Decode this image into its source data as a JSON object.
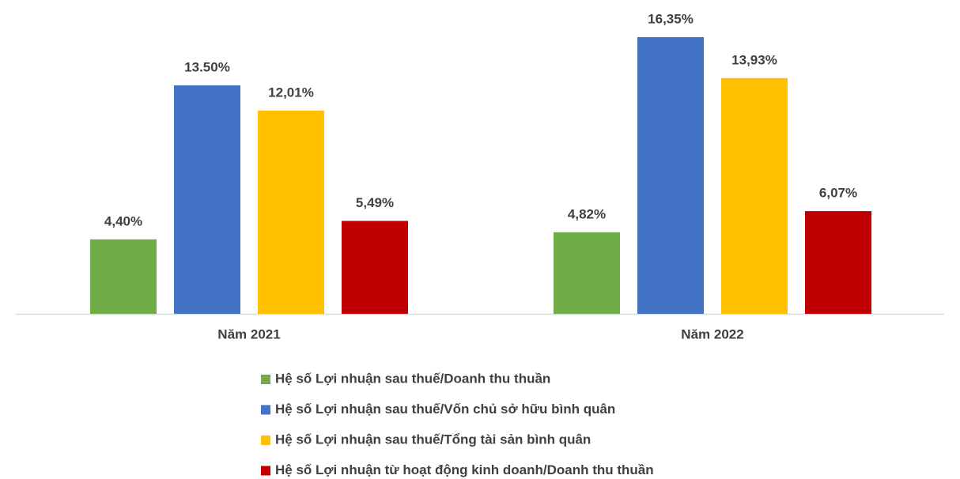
{
  "chart_data": {
    "type": "bar",
    "categories": [
      "Năm 2021",
      "Năm 2022"
    ],
    "series": [
      {
        "name": "Hệ số Lợi nhuận sau thuế/Doanh thu thuần",
        "color": "#70ad47",
        "values": [
          4.4,
          4.82
        ],
        "value_labels": [
          "4,40%",
          "4,82%"
        ]
      },
      {
        "name": "Hệ số Lợi nhuận sau thuế/Vốn chủ sở hữu bình quân",
        "color": "#4472c4",
        "values": [
          13.5,
          16.35
        ],
        "value_labels": [
          "13.50%",
          "16,35%"
        ]
      },
      {
        "name": "Hệ số Lợi nhuận sau thuế/Tổng tài sản bình quân",
        "color": "#ffc000",
        "values": [
          12.01,
          13.93
        ],
        "value_labels": [
          "12,01%",
          "13,93%"
        ]
      },
      {
        "name": "Hệ số Lợi nhuận từ hoạt động kinh doanh/Doanh thu thuần",
        "color": "#c00000",
        "values": [
          5.49,
          6.07
        ],
        "value_labels": [
          "5,49%",
          "6,07%"
        ]
      }
    ],
    "legend": "bottom"
  }
}
